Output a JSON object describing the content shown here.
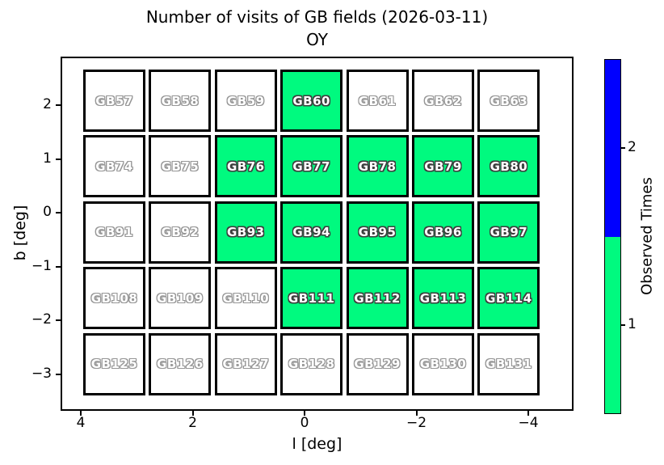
{
  "figure": {
    "title": "Number of visits of GB fields (2026-03-11)",
    "subtitle": "OY"
  },
  "axes": {
    "xlabel": "l [deg]",
    "ylabel": "b [deg]",
    "xtick_labels": [
      "4",
      "2",
      "0",
      "−2",
      "−4"
    ],
    "ytick_labels": [
      "2",
      "1",
      "0",
      "−1",
      "−2",
      "−3"
    ]
  },
  "colorbar": {
    "label": "Observed Times",
    "tick_labels": [
      "2",
      "1"
    ],
    "value_colors": {
      "1": "#00fa7f",
      "2": "#0000ff"
    },
    "unobserved_color": "#ffffff"
  },
  "chart_data": {
    "type": "heatmap",
    "title": "Number of visits of GB fields (2026-03-11)",
    "subtitle": "OY",
    "xlabel": "l [deg]",
    "ylabel": "b [deg]",
    "xticks": [
      4,
      2,
      0,
      -2,
      -4
    ],
    "yticks": [
      2,
      1,
      0,
      -1,
      -2,
      -3
    ],
    "x_axis_reversed": true,
    "xlim": [
      4.45,
      -4.85
    ],
    "ylim": [
      -3.65,
      2.95
    ],
    "grid_shape": [
      5,
      7
    ],
    "legend": "colorbar right, label Observed Times, green=1 blue=2, unobserved fields white",
    "rows": [
      {
        "fields": [
          "GB57",
          "GB58",
          "GB59",
          "GB60",
          "GB61",
          "GB62",
          "GB63"
        ],
        "visits": [
          0,
          0,
          0,
          1,
          0,
          0,
          0
        ]
      },
      {
        "fields": [
          "GB74",
          "GB75",
          "GB76",
          "GB77",
          "GB78",
          "GB79",
          "GB80"
        ],
        "visits": [
          0,
          0,
          1,
          1,
          1,
          1,
          1
        ]
      },
      {
        "fields": [
          "GB91",
          "GB92",
          "GB93",
          "GB94",
          "GB95",
          "GB96",
          "GB97"
        ],
        "visits": [
          0,
          0,
          1,
          1,
          1,
          1,
          1
        ]
      },
      {
        "fields": [
          "GB108",
          "GB109",
          "GB110",
          "GB111",
          "GB112",
          "GB113",
          "GB114"
        ],
        "visits": [
          0,
          0,
          0,
          1,
          1,
          1,
          1
        ]
      },
      {
        "fields": [
          "GB125",
          "GB126",
          "GB127",
          "GB128",
          "GB129",
          "GB130",
          "GB131"
        ],
        "visits": [
          0,
          0,
          0,
          0,
          0,
          0,
          0
        ]
      }
    ]
  }
}
